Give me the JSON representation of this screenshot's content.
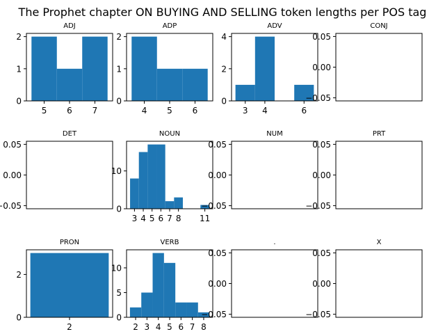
{
  "title": "The Prophet chapter ON BUYING AND SELLING token lengths per POS tag",
  "bar_color": "#1f77b4",
  "chart_data": [
    {
      "type": "bar",
      "title": "ADJ",
      "bins": [
        {
          "x0": 4.5,
          "x1": 5.5,
          "y": 2
        },
        {
          "x0": 5.5,
          "x1": 6.5,
          "y": 1
        },
        {
          "x0": 6.5,
          "x1": 7.5,
          "y": 2
        }
      ],
      "xlim": [
        4.3,
        7.7
      ],
      "ylim": [
        0,
        2.1
      ],
      "xticks": [
        5,
        6,
        7
      ],
      "xtick_labels": [
        "5",
        "6",
        "7"
      ],
      "yticks": [
        0,
        1,
        2
      ],
      "ytick_labels": [
        "0",
        "1",
        "2"
      ]
    },
    {
      "type": "bar",
      "title": "ADP",
      "bins": [
        {
          "x0": 3.5,
          "x1": 4.5,
          "y": 2
        },
        {
          "x0": 4.5,
          "x1": 5.5,
          "y": 1
        },
        {
          "x0": 5.5,
          "x1": 6.5,
          "y": 1
        }
      ],
      "xlim": [
        3.3,
        6.7
      ],
      "ylim": [
        0,
        2.1
      ],
      "xticks": [
        4,
        5,
        6
      ],
      "xtick_labels": [
        "4",
        "5",
        "6"
      ],
      "yticks": [
        0,
        1,
        2
      ],
      "ytick_labels": [
        "0",
        "1",
        "2"
      ]
    },
    {
      "type": "bar",
      "title": "ADV",
      "bins": [
        {
          "x0": 2.5,
          "x1": 3.5,
          "y": 1
        },
        {
          "x0": 3.5,
          "x1": 4.5,
          "y": 4
        },
        {
          "x0": 4.5,
          "x1": 5.5,
          "y": 0
        },
        {
          "x0": 5.5,
          "x1": 6.5,
          "y": 1
        }
      ],
      "xlim": [
        2.3,
        6.7
      ],
      "ylim": [
        0,
        4.2
      ],
      "xticks": [
        3,
        4,
        6
      ],
      "xtick_labels": [
        "3",
        "4",
        "6"
      ],
      "yticks": [
        0,
        2,
        4
      ],
      "ytick_labels": [
        "0",
        "2",
        "4"
      ]
    },
    {
      "type": "bar",
      "title": "CONJ",
      "bins": [],
      "xlim": [
        0,
        1
      ],
      "ylim": [
        -0.055,
        0.055
      ],
      "xticks": [],
      "xtick_labels": [],
      "yticks": [
        -0.05,
        0,
        0.05
      ],
      "ytick_labels": [
        "−0.05",
        "0.00",
        "0.05"
      ]
    },
    {
      "type": "bar",
      "title": "DET",
      "bins": [],
      "xlim": [
        0,
        1
      ],
      "ylim": [
        -0.055,
        0.055
      ],
      "xticks": [],
      "xtick_labels": [],
      "yticks": [
        -0.05,
        0,
        0.05
      ],
      "ytick_labels": [
        "−0.05",
        "0.00",
        "0.05"
      ]
    },
    {
      "type": "bar",
      "title": "NOUN",
      "bins": [
        {
          "x0": 2.5,
          "x1": 3.5,
          "y": 8
        },
        {
          "x0": 3.5,
          "x1": 4.5,
          "y": 15
        },
        {
          "x0": 4.5,
          "x1": 5.5,
          "y": 17
        },
        {
          "x0": 5.5,
          "x1": 6.5,
          "y": 17
        },
        {
          "x0": 6.5,
          "x1": 7.5,
          "y": 2
        },
        {
          "x0": 7.5,
          "x1": 8.5,
          "y": 3
        },
        {
          "x0": 8.5,
          "x1": 9.5,
          "y": 0
        },
        {
          "x0": 9.5,
          "x1": 10.5,
          "y": 0
        },
        {
          "x0": 10.5,
          "x1": 11.5,
          "y": 1
        }
      ],
      "xlim": [
        2.1,
        11.9
      ],
      "ylim": [
        0,
        17.85
      ],
      "xticks": [
        3,
        4,
        5,
        6,
        7,
        8,
        11
      ],
      "xtick_labels": [
        "3",
        "4",
        "5",
        "6",
        "7",
        "8",
        "11"
      ],
      "yticks": [
        0,
        10
      ],
      "ytick_labels": [
        "0",
        "10"
      ]
    },
    {
      "type": "bar",
      "title": "NUM",
      "bins": [],
      "xlim": [
        0,
        1
      ],
      "ylim": [
        -0.055,
        0.055
      ],
      "xticks": [],
      "xtick_labels": [],
      "yticks": [
        -0.05,
        0,
        0.05
      ],
      "ytick_labels": [
        "−0.05",
        "0.00",
        "0.05"
      ]
    },
    {
      "type": "bar",
      "title": "PRT",
      "bins": [],
      "xlim": [
        0,
        1
      ],
      "ylim": [
        -0.055,
        0.055
      ],
      "xticks": [],
      "xtick_labels": [],
      "yticks": [
        -0.05,
        0,
        0.05
      ],
      "ytick_labels": [
        "−0.05",
        "0.00",
        "0.05"
      ]
    },
    {
      "type": "bar",
      "title": "PRON",
      "bins": [
        {
          "x0": 1.5,
          "x1": 2.5,
          "y": 3
        }
      ],
      "xlim": [
        1.45,
        2.55
      ],
      "ylim": [
        0,
        3.15
      ],
      "xticks": [
        2
      ],
      "xtick_labels": [
        "2"
      ],
      "yticks": [
        0,
        2
      ],
      "ytick_labels": [
        "0",
        "2"
      ]
    },
    {
      "type": "bar",
      "title": "VERB",
      "bins": [
        {
          "x0": 1.5,
          "x1": 2.5,
          "y": 2
        },
        {
          "x0": 2.5,
          "x1": 3.5,
          "y": 5
        },
        {
          "x0": 3.5,
          "x1": 4.5,
          "y": 13
        },
        {
          "x0": 4.5,
          "x1": 5.5,
          "y": 11
        },
        {
          "x0": 5.5,
          "x1": 6.5,
          "y": 3
        },
        {
          "x0": 6.5,
          "x1": 7.5,
          "y": 3
        },
        {
          "x0": 7.5,
          "x1": 8.5,
          "y": 1
        }
      ],
      "xlim": [
        1.2,
        8.8
      ],
      "ylim": [
        0,
        13.65
      ],
      "xticks": [
        2,
        3,
        4,
        5,
        6,
        7,
        8
      ],
      "xtick_labels": [
        "2",
        "3",
        "4",
        "5",
        "6",
        "7",
        "8"
      ],
      "yticks": [
        0,
        5,
        10
      ],
      "ytick_labels": [
        "0",
        "5",
        "10"
      ]
    },
    {
      "type": "bar",
      "title": ".",
      "bins": [],
      "xlim": [
        0,
        1
      ],
      "ylim": [
        -0.055,
        0.055
      ],
      "xticks": [],
      "xtick_labels": [],
      "yticks": [
        -0.05,
        0,
        0.05
      ],
      "ytick_labels": [
        "−0.05",
        "0.00",
        "0.05"
      ]
    },
    {
      "type": "bar",
      "title": "X",
      "bins": [],
      "xlim": [
        0,
        1
      ],
      "ylim": [
        -0.055,
        0.055
      ],
      "xticks": [],
      "xtick_labels": [],
      "yticks": [
        -0.05,
        0,
        0.05
      ],
      "ytick_labels": [
        "−0.05",
        "0.00",
        "0.05"
      ]
    }
  ]
}
